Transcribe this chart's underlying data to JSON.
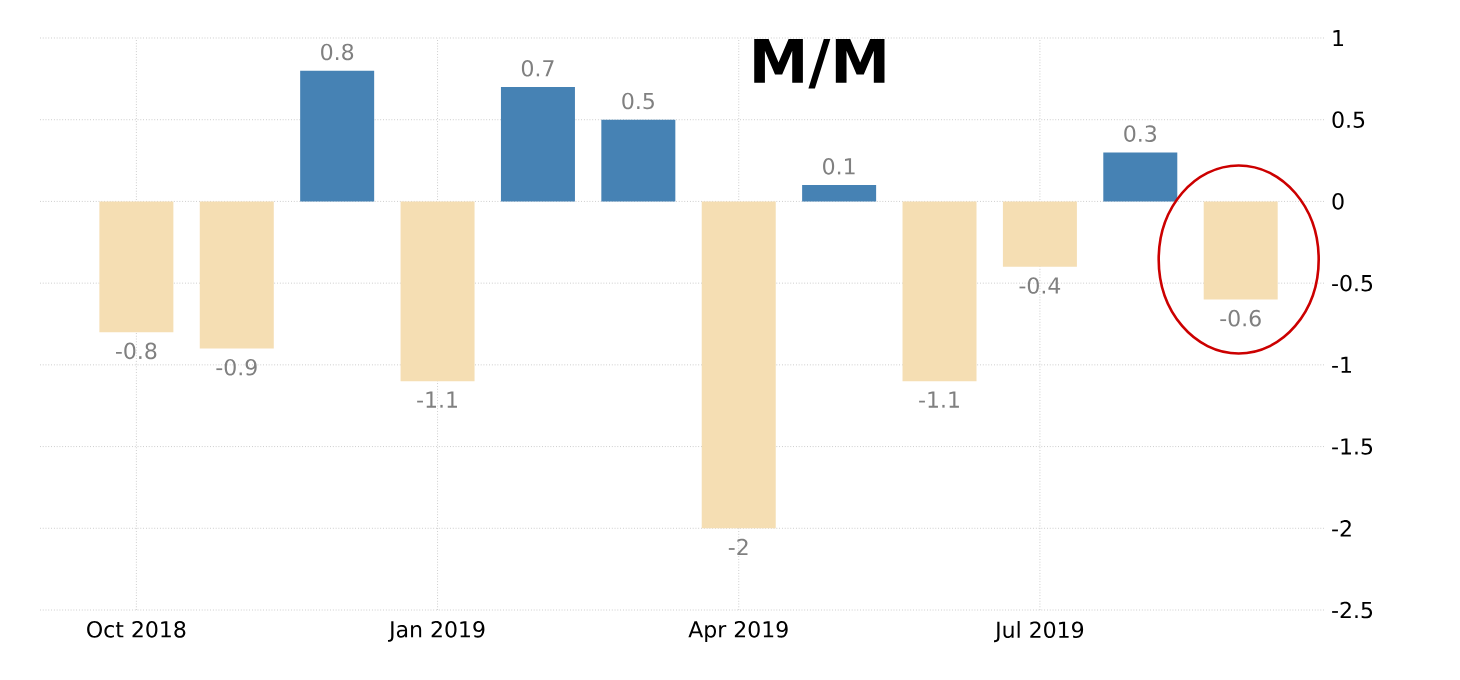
{
  "chart_data": {
    "type": "bar",
    "title": "M/M",
    "categories": [
      "Oct 2018",
      null,
      null,
      "Jan 2019",
      null,
      null,
      "Apr 2019",
      null,
      null,
      "Jul 2019",
      null,
      null
    ],
    "values": [
      -0.8,
      -0.9,
      0.8,
      -1.1,
      0.7,
      0.5,
      -2,
      0.1,
      -1.1,
      -0.4,
      0.3,
      -0.6
    ],
    "colors": [
      "#f5deb3",
      "#f5deb3",
      "#4682b4",
      "#f5deb3",
      "#4682b4",
      "#4682b4",
      "#f5deb3",
      "#4682b4",
      "#f5deb3",
      "#f5deb3",
      "#4682b4",
      "#f5deb3"
    ],
    "ylim": [
      -2.5,
      1
    ],
    "yticks": [
      -2.5,
      -2,
      -1.5,
      -1,
      -0.5,
      0,
      0.5,
      1
    ],
    "grid": true,
    "data_labels": true
  }
}
